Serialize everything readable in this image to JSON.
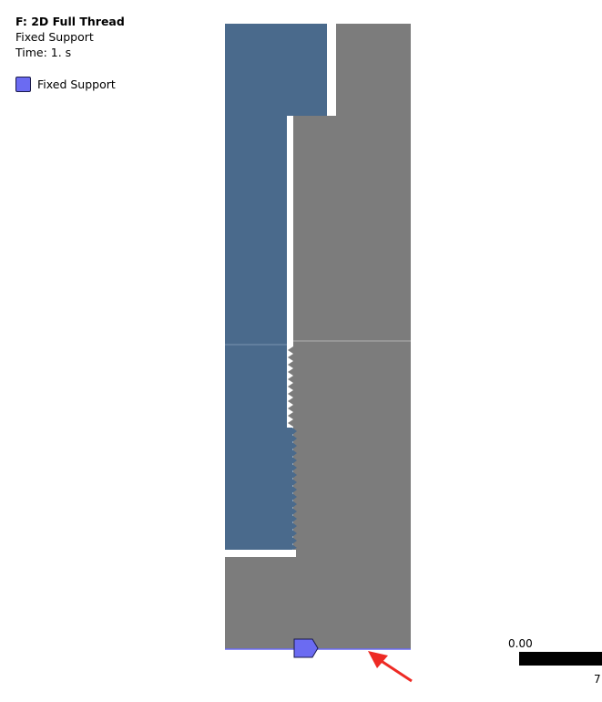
{
  "legend": {
    "title": "F: 2D Full Thread",
    "subtitle": "Fixed Support",
    "time": "Time: 1. s",
    "key_label": "Fixed Support"
  },
  "scale": {
    "start_label": "0.00",
    "end_label": "7"
  },
  "colors": {
    "bolt": "#4a6a8c",
    "nut": "#7c7c7c",
    "support": "#6b6bf2",
    "arrow": "#ee2a24"
  },
  "icons": {
    "support_marker": "fixed-support-icon",
    "pointer": "red-arrow-icon"
  }
}
